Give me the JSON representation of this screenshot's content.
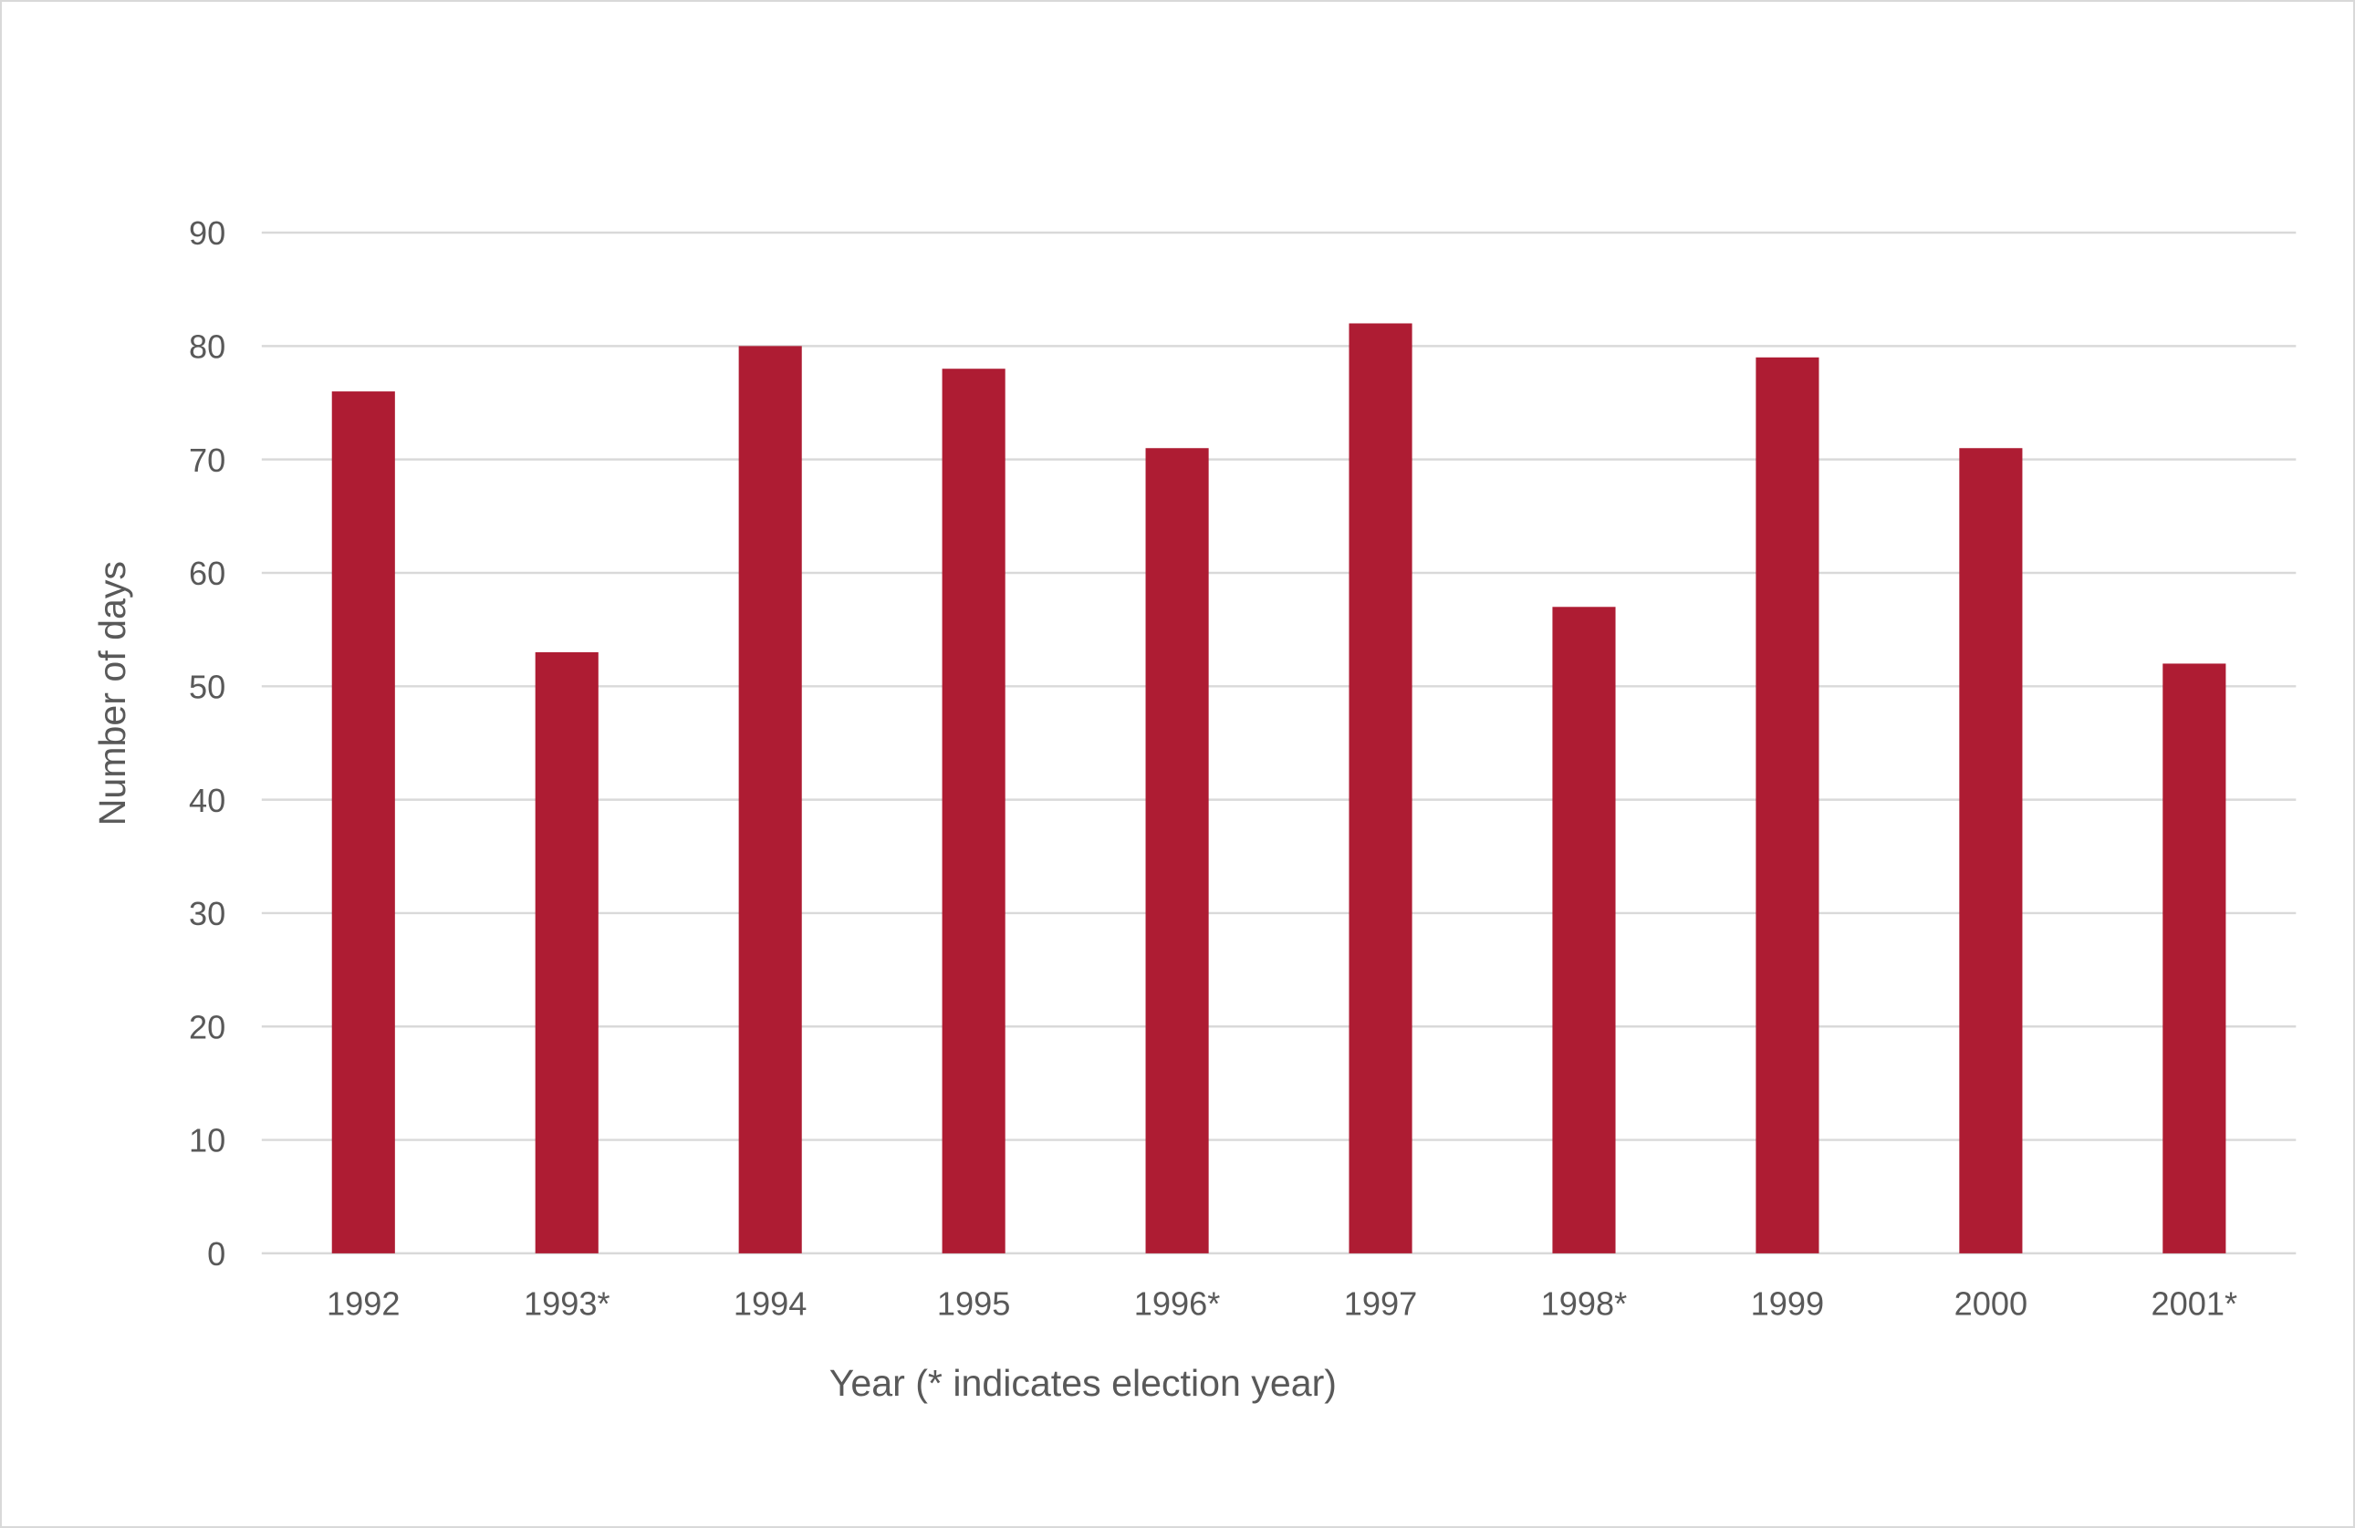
{
  "chart_data": {
    "type": "bar",
    "title": "",
    "xlabel": "Year (* indicates election year)",
    "ylabel": "Number of days",
    "categories": [
      "1992",
      "1993*",
      "1994",
      "1995",
      "1996*",
      "1997",
      "1998*",
      "1999",
      "2000",
      "2001*"
    ],
    "values": [
      76,
      53,
      80,
      78,
      71,
      82,
      57,
      79,
      71,
      52
    ],
    "ylim": [
      0,
      90
    ],
    "yticks": [
      0,
      10,
      20,
      30,
      40,
      50,
      60,
      70,
      80,
      90
    ],
    "grid": true,
    "legend": "none",
    "bar_color": "#ae1c33",
    "grid_color": "#d9d9d9"
  }
}
